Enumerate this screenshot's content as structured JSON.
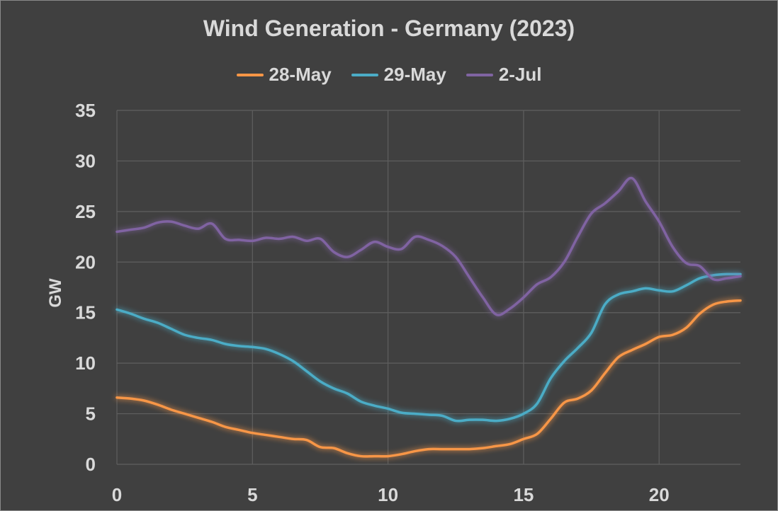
{
  "chart_data": {
    "type": "line",
    "title": "Wind Generation - Germany (2023)",
    "xlabel": "",
    "ylabel": "GW",
    "xlim": [
      0,
      23
    ],
    "ylim": [
      0,
      35
    ],
    "x_ticks": [
      0,
      5,
      10,
      15,
      20
    ],
    "y_ticks": [
      0,
      5,
      10,
      15,
      20,
      25,
      30,
      35
    ],
    "grid": true,
    "legend_position": "top",
    "series": [
      {
        "name": "28-May",
        "color": "#f79646",
        "points": [
          [
            0,
            6.6
          ],
          [
            0.5,
            6.5
          ],
          [
            1,
            6.3
          ],
          [
            1.5,
            5.9
          ],
          [
            2,
            5.4
          ],
          [
            2.5,
            5.0
          ],
          [
            3,
            4.6
          ],
          [
            3.5,
            4.2
          ],
          [
            4,
            3.7
          ],
          [
            4.5,
            3.4
          ],
          [
            5,
            3.1
          ],
          [
            5.5,
            2.9
          ],
          [
            6,
            2.7
          ],
          [
            6.5,
            2.5
          ],
          [
            7,
            2.4
          ],
          [
            7.5,
            1.7
          ],
          [
            8,
            1.6
          ],
          [
            8.5,
            1.1
          ],
          [
            9,
            0.8
          ],
          [
            9.5,
            0.8
          ],
          [
            10,
            0.8
          ],
          [
            10.5,
            1.0
          ],
          [
            11,
            1.3
          ],
          [
            11.5,
            1.5
          ],
          [
            12,
            1.5
          ],
          [
            12.5,
            1.5
          ],
          [
            13,
            1.5
          ],
          [
            13.5,
            1.6
          ],
          [
            14,
            1.8
          ],
          [
            14.5,
            2.0
          ],
          [
            15,
            2.5
          ],
          [
            15.5,
            3.0
          ],
          [
            16,
            4.5
          ],
          [
            16.5,
            6.1
          ],
          [
            17,
            6.5
          ],
          [
            17.5,
            7.3
          ],
          [
            18,
            9.0
          ],
          [
            18.5,
            10.6
          ],
          [
            19,
            11.3
          ],
          [
            19.5,
            11.9
          ],
          [
            20,
            12.6
          ],
          [
            20.5,
            12.8
          ],
          [
            21,
            13.5
          ],
          [
            21.5,
            14.9
          ],
          [
            22,
            15.8
          ],
          [
            22.5,
            16.1
          ],
          [
            23,
            16.2
          ]
        ]
      },
      {
        "name": "29-May",
        "color": "#4bacc6",
        "points": [
          [
            0,
            15.3
          ],
          [
            0.5,
            14.9
          ],
          [
            1,
            14.4
          ],
          [
            1.5,
            14.0
          ],
          [
            2,
            13.4
          ],
          [
            2.5,
            12.8
          ],
          [
            3,
            12.5
          ],
          [
            3.5,
            12.3
          ],
          [
            4,
            11.9
          ],
          [
            4.5,
            11.7
          ],
          [
            5,
            11.6
          ],
          [
            5.5,
            11.4
          ],
          [
            6,
            10.9
          ],
          [
            6.5,
            10.2
          ],
          [
            7,
            9.2
          ],
          [
            7.5,
            8.2
          ],
          [
            8,
            7.5
          ],
          [
            8.5,
            7.0
          ],
          [
            9,
            6.2
          ],
          [
            9.5,
            5.8
          ],
          [
            10,
            5.5
          ],
          [
            10.5,
            5.1
          ],
          [
            11,
            5.0
          ],
          [
            11.5,
            4.9
          ],
          [
            12,
            4.8
          ],
          [
            12.5,
            4.3
          ],
          [
            13,
            4.4
          ],
          [
            13.5,
            4.4
          ],
          [
            14,
            4.3
          ],
          [
            14.5,
            4.5
          ],
          [
            15,
            5.0
          ],
          [
            15.5,
            6.0
          ],
          [
            16,
            8.5
          ],
          [
            16.5,
            10.2
          ],
          [
            17,
            11.5
          ],
          [
            17.5,
            13.0
          ],
          [
            18,
            15.8
          ],
          [
            18.5,
            16.8
          ],
          [
            19,
            17.1
          ],
          [
            19.5,
            17.4
          ],
          [
            20,
            17.2
          ],
          [
            20.5,
            17.1
          ],
          [
            21,
            17.7
          ],
          [
            21.5,
            18.4
          ],
          [
            22,
            18.7
          ],
          [
            22.5,
            18.8
          ],
          [
            23,
            18.8
          ]
        ]
      },
      {
        "name": "2-Jul",
        "color": "#8064a2",
        "points": [
          [
            0,
            23.0
          ],
          [
            0.5,
            23.2
          ],
          [
            1,
            23.4
          ],
          [
            1.5,
            23.9
          ],
          [
            2,
            24.0
          ],
          [
            2.5,
            23.6
          ],
          [
            3,
            23.3
          ],
          [
            3.5,
            23.8
          ],
          [
            4,
            22.3
          ],
          [
            4.5,
            22.2
          ],
          [
            5,
            22.1
          ],
          [
            5.5,
            22.4
          ],
          [
            6,
            22.3
          ],
          [
            6.5,
            22.5
          ],
          [
            7,
            22.1
          ],
          [
            7.5,
            22.3
          ],
          [
            8,
            21.0
          ],
          [
            8.5,
            20.5
          ],
          [
            9,
            21.2
          ],
          [
            9.5,
            22.0
          ],
          [
            10,
            21.5
          ],
          [
            10.5,
            21.3
          ],
          [
            11,
            22.5
          ],
          [
            11.5,
            22.2
          ],
          [
            12,
            21.6
          ],
          [
            12.5,
            20.5
          ],
          [
            13,
            18.5
          ],
          [
            13.5,
            16.5
          ],
          [
            14,
            14.8
          ],
          [
            14.5,
            15.4
          ],
          [
            15,
            16.5
          ],
          [
            15.5,
            17.8
          ],
          [
            16,
            18.5
          ],
          [
            16.5,
            20.0
          ],
          [
            17,
            22.5
          ],
          [
            17.5,
            24.8
          ],
          [
            18,
            25.8
          ],
          [
            18.5,
            27.0
          ],
          [
            19,
            28.3
          ],
          [
            19.5,
            26.0
          ],
          [
            20,
            24.0
          ],
          [
            20.5,
            21.5
          ],
          [
            21,
            19.9
          ],
          [
            21.5,
            19.6
          ],
          [
            22,
            18.3
          ],
          [
            22.5,
            18.4
          ],
          [
            23,
            18.6
          ]
        ]
      }
    ]
  }
}
